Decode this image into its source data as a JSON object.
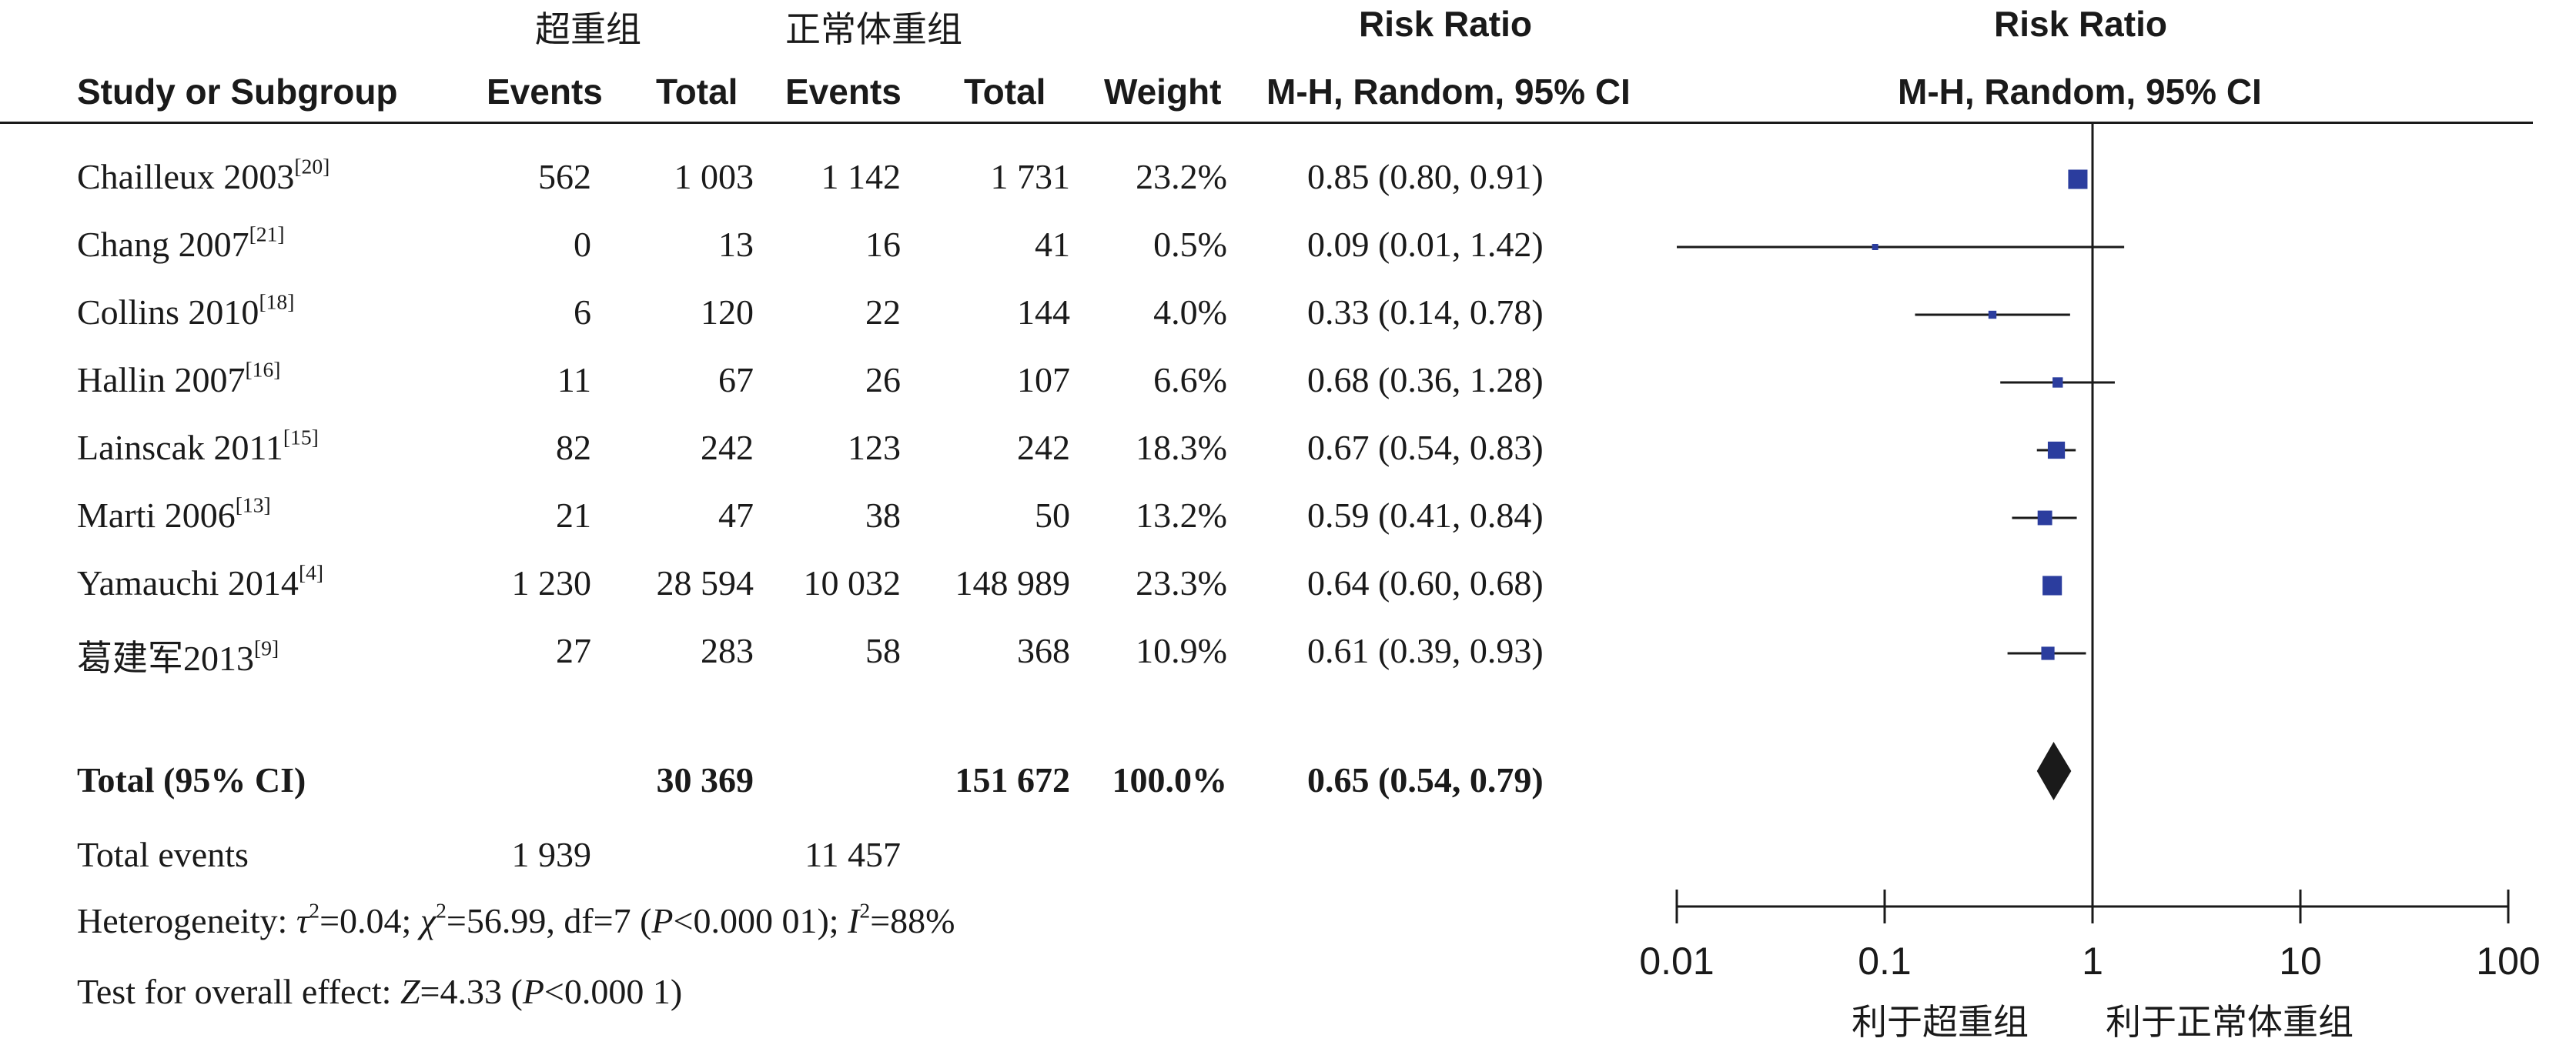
{
  "headers": {
    "group1": "超重组",
    "group2": "正常体重组",
    "rr_title": "Risk Ratio",
    "plot_title": "Risk Ratio",
    "study": "Study or Subgroup",
    "events1": "Events",
    "total1": "Total",
    "events2": "Events",
    "total2": "Total",
    "weight": "Weight",
    "rr_method": "M-H, Random, 95% CI",
    "plot_method": "M-H, Random, 95% CI"
  },
  "studies": [
    {
      "name": "Chailleux 2003",
      "ref": "[20]",
      "events1": "562",
      "total1": "1 003",
      "events2": "1 142",
      "total2": "1 731",
      "weight": "23.2%",
      "ci_text": "0.85 (0.80, 0.91)"
    },
    {
      "name": "Chang 2007",
      "ref": "[21]",
      "events1": "0",
      "total1": "13",
      "events2": "16",
      "total2": "41",
      "weight": "0.5%",
      "ci_text": "0.09 (0.01, 1.42)"
    },
    {
      "name": "Collins 2010",
      "ref": "[18]",
      "events1": "6",
      "total1": "120",
      "events2": "22",
      "total2": "144",
      "weight": "4.0%",
      "ci_text": "0.33 (0.14, 0.78)"
    },
    {
      "name": "Hallin 2007",
      "ref": "[16]",
      "events1": "11",
      "total1": "67",
      "events2": "26",
      "total2": "107",
      "weight": "6.6%",
      "ci_text": "0.68 (0.36, 1.28)"
    },
    {
      "name": "Lainscak 2011",
      "ref": "[15]",
      "events1": "82",
      "total1": "242",
      "events2": "123",
      "total2": "242",
      "weight": "18.3%",
      "ci_text": "0.67 (0.54, 0.83)"
    },
    {
      "name": "Marti 2006",
      "ref": "[13]",
      "events1": "21",
      "total1": "47",
      "events2": "38",
      "total2": "50",
      "weight": "13.2%",
      "ci_text": "0.59 (0.41, 0.84)"
    },
    {
      "name": "Yamauchi 2014",
      "ref": "[4]",
      "events1": "1 230",
      "total1": "28 594",
      "events2": "10 032",
      "total2": "148 989",
      "weight": "23.3%",
      "ci_text": "0.64 (0.60, 0.68)"
    },
    {
      "name": "葛建军2013",
      "ref": "[9]",
      "events1": "27",
      "total1": "283",
      "events2": "58",
      "total2": "368",
      "weight": "10.9%",
      "ci_text": "0.61 (0.39, 0.93)"
    }
  ],
  "total_row": {
    "label": "Total (95% CI)",
    "total1": "30 369",
    "total2": "151 672",
    "weight": "100.0%",
    "ci_text": "0.65 (0.54, 0.79)"
  },
  "total_events": {
    "label": "Total events",
    "events1": "1 939",
    "events2": "11 457"
  },
  "heterogeneity": {
    "prefix": "Heterogeneity: ",
    "tau": "τ",
    "tau_val": "=0.04; ",
    "chi": "χ",
    "chi_val": "=56.99, df=7 (",
    "p": "P",
    "p_val": "<0.000 01); ",
    "i": "I",
    "i_val": "=88%"
  },
  "overall": {
    "prefix": "Test for overall effect: ",
    "z": "Z",
    "z_val": "=4.33 (",
    "p": "P",
    "p_val": "<0.000 1)"
  },
  "favours": {
    "left": "利于超重组",
    "right": "利于正常体重组"
  },
  "colors": {
    "marker": "#2b3d9e",
    "diamond": "#1a1a1a",
    "line": "#1a1a1a"
  },
  "chart_data": {
    "type": "forest",
    "scale": "log",
    "xlim": [
      0.01,
      100
    ],
    "ticks": [
      0.01,
      0.1,
      1,
      10,
      100
    ],
    "tick_labels": [
      "0.01",
      "0.1",
      "1",
      "10",
      "100"
    ],
    "null_line": 1,
    "points": [
      {
        "label": "Chailleux 2003",
        "rr": 0.85,
        "lo": 0.8,
        "hi": 0.91,
        "weight": 23.2
      },
      {
        "label": "Chang 2007",
        "rr": 0.09,
        "lo": 0.01,
        "hi": 1.42,
        "weight": 0.5
      },
      {
        "label": "Collins 2010",
        "rr": 0.33,
        "lo": 0.14,
        "hi": 0.78,
        "weight": 4.0
      },
      {
        "label": "Hallin 2007",
        "rr": 0.68,
        "lo": 0.36,
        "hi": 1.28,
        "weight": 6.6
      },
      {
        "label": "Lainscak 2011",
        "rr": 0.67,
        "lo": 0.54,
        "hi": 0.83,
        "weight": 18.3
      },
      {
        "label": "Marti 2006",
        "rr": 0.59,
        "lo": 0.41,
        "hi": 0.84,
        "weight": 13.2
      },
      {
        "label": "Yamauchi 2014",
        "rr": 0.64,
        "lo": 0.6,
        "hi": 0.68,
        "weight": 23.3
      },
      {
        "label": "葛建军2013",
        "rr": 0.61,
        "lo": 0.39,
        "hi": 0.93,
        "weight": 10.9
      }
    ],
    "overall": {
      "rr": 0.65,
      "lo": 0.54,
      "hi": 0.79
    }
  }
}
